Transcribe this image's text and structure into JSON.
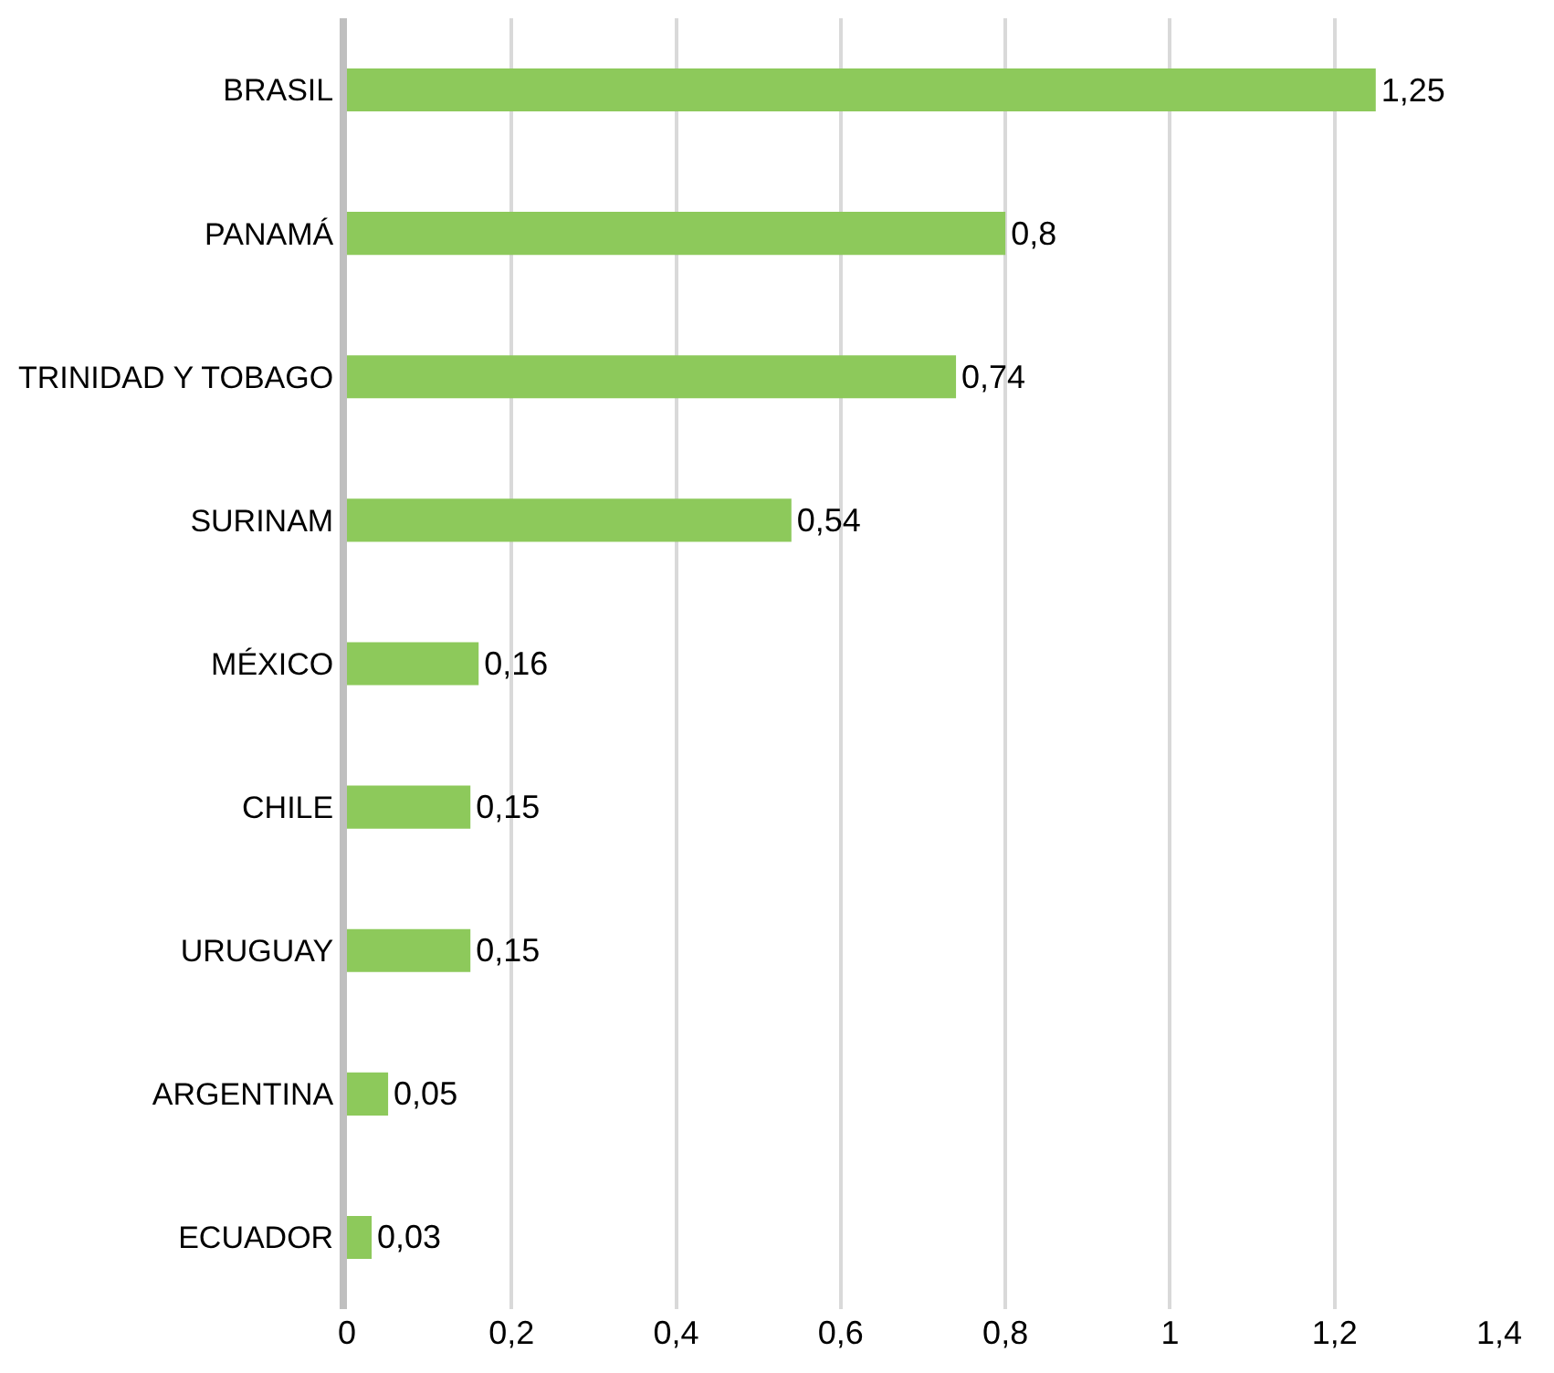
{
  "chart_data": {
    "type": "bar",
    "orientation": "horizontal",
    "categories": [
      "BRASIL",
      "PANAMÁ",
      "TRINIDAD Y TOBAGO",
      "SURINAM",
      "MÉXICO",
      "CHILE",
      "URUGUAY",
      "ARGENTINA",
      "ECUADOR"
    ],
    "values": [
      1.25,
      0.8,
      0.74,
      0.54,
      0.16,
      0.15,
      0.15,
      0.05,
      0.03
    ],
    "value_labels": [
      "1,25",
      "0,8",
      "0,74",
      "0,54",
      "0,16",
      "0,15",
      "0,15",
      "0,05",
      "0,03"
    ],
    "color": "#8dc95b",
    "xlim": [
      0,
      1.4
    ],
    "xticks": [
      0,
      {
        "value": 0.2,
        "label": "0,2"
      },
      {
        "value": 0.4,
        "label": "0,4"
      },
      {
        "value": 0.6,
        "label": "0,6"
      },
      {
        "value": 0.8,
        "label": "0,8"
      },
      1,
      {
        "value": 1.2,
        "label": "1,2"
      },
      {
        "value": 1.4,
        "label": "1,4"
      }
    ],
    "grid": "x",
    "legend": false
  }
}
